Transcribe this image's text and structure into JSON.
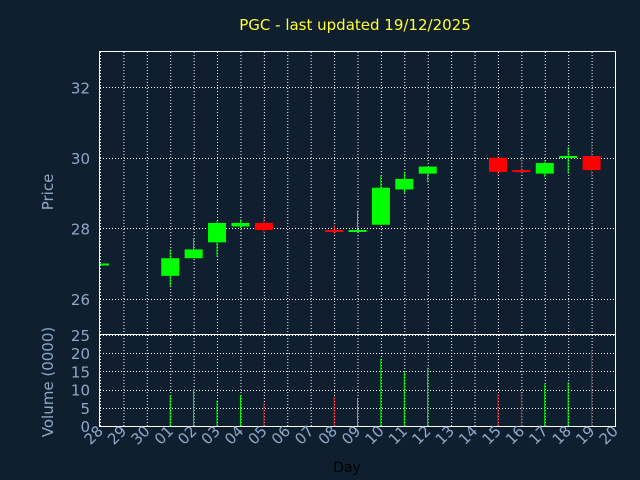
{
  "chart_data": [
    {
      "type": "candlestick",
      "title": "PGC - last updated 19/12/2025",
      "ylabel": "Price",
      "ylim": [
        25,
        33
      ],
      "yticks": [
        26,
        28,
        30,
        32
      ],
      "grid": true,
      "colors": {
        "up": "#00ff00",
        "down": "#ff0000",
        "background": "#0f1f30",
        "grid": "#ffffff",
        "axis_text": "#8fa8c8",
        "title": "#ffff33"
      },
      "categories": [
        "28",
        "29",
        "30",
        "01",
        "02",
        "03",
        "04",
        "05",
        "06",
        "07",
        "08",
        "09",
        "10",
        "11",
        "12",
        "13",
        "14",
        "15",
        "16",
        "17",
        "18",
        "19",
        "20"
      ],
      "candles": [
        {
          "day": "28",
          "open": 27.0,
          "high": 27.0,
          "low": 27.0,
          "close": 27.0
        },
        {
          "day": "01",
          "open": 26.65,
          "high": 27.4,
          "low": 26.35,
          "close": 27.15
        },
        {
          "day": "02",
          "open": 27.15,
          "high": 27.7,
          "low": 27.15,
          "close": 27.4
        },
        {
          "day": "03",
          "open": 27.6,
          "high": 28.2,
          "low": 27.2,
          "close": 28.15
        },
        {
          "day": "04",
          "open": 28.05,
          "high": 28.25,
          "low": 28.0,
          "close": 28.15
        },
        {
          "day": "05",
          "open": 28.15,
          "high": 28.3,
          "low": 27.85,
          "close": 27.95
        },
        {
          "day": "08",
          "open": 27.95,
          "high": 28.1,
          "low": 27.85,
          "close": 27.9
        },
        {
          "day": "09",
          "open": 27.95,
          "high": 28.5,
          "low": 27.9,
          "close": 27.95
        },
        {
          "day": "10",
          "open": 28.1,
          "high": 29.5,
          "low": 28.1,
          "close": 29.15
        },
        {
          "day": "11",
          "open": 29.1,
          "high": 29.6,
          "low": 29.0,
          "close": 29.4
        },
        {
          "day": "12",
          "open": 29.55,
          "high": 29.75,
          "low": 29.3,
          "close": 29.75
        },
        {
          "day": "15",
          "open": 30.0,
          "high": 30.05,
          "low": 29.5,
          "close": 29.6
        },
        {
          "day": "16",
          "open": 29.65,
          "high": 30.0,
          "low": 29.55,
          "close": 29.6
        },
        {
          "day": "17",
          "open": 29.55,
          "high": 29.9,
          "low": 29.45,
          "close": 29.85
        },
        {
          "day": "18",
          "open": 30.0,
          "high": 30.3,
          "low": 29.55,
          "close": 30.05
        },
        {
          "day": "19",
          "open": 30.05,
          "high": 30.4,
          "low": 29.45,
          "close": 29.65
        }
      ]
    },
    {
      "type": "bar",
      "ylabel": "Volume (0000)",
      "xlabel": "Day",
      "ylim": [
        0,
        25
      ],
      "yticks": [
        0,
        5,
        10,
        15,
        20,
        25
      ],
      "categories": [
        "28",
        "29",
        "30",
        "01",
        "02",
        "03",
        "04",
        "05",
        "06",
        "07",
        "08",
        "09",
        "10",
        "11",
        "12",
        "13",
        "14",
        "15",
        "16",
        "17",
        "18",
        "19",
        "20"
      ],
      "volumes": [
        {
          "day": "01",
          "value": 8.5,
          "direction": "up"
        },
        {
          "day": "02",
          "value": 10.0,
          "direction": "up"
        },
        {
          "day": "03",
          "value": 7.0,
          "direction": "up"
        },
        {
          "day": "04",
          "value": 8.5,
          "direction": "up"
        },
        {
          "day": "05",
          "value": 6.5,
          "direction": "down"
        },
        {
          "day": "08",
          "value": 8.0,
          "direction": "down"
        },
        {
          "day": "09",
          "value": 7.5,
          "direction": "up"
        },
        {
          "day": "10",
          "value": 18.5,
          "direction": "up"
        },
        {
          "day": "11",
          "value": 15.0,
          "direction": "up"
        },
        {
          "day": "12",
          "value": 16.0,
          "direction": "up"
        },
        {
          "day": "15",
          "value": 9.0,
          "direction": "down"
        },
        {
          "day": "16",
          "value": 9.0,
          "direction": "down"
        },
        {
          "day": "17",
          "value": 11.5,
          "direction": "up"
        },
        {
          "day": "18",
          "value": 12.0,
          "direction": "up"
        },
        {
          "day": "19",
          "value": 21.0,
          "direction": "down"
        }
      ]
    }
  ]
}
